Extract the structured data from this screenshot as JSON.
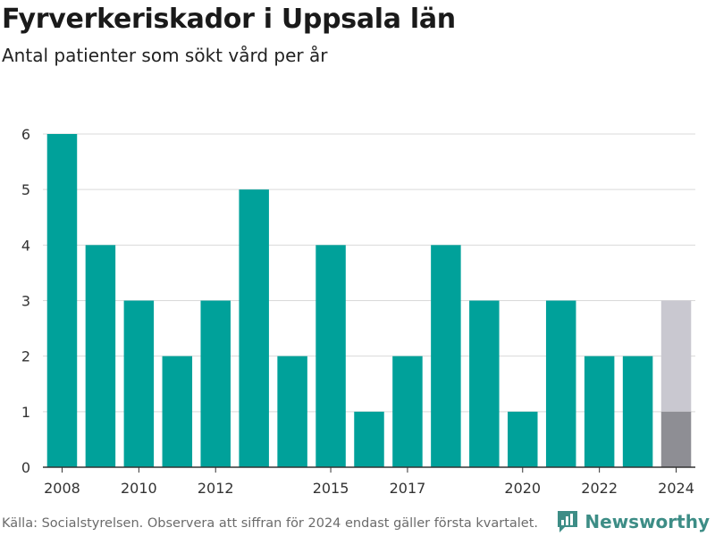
{
  "header": {
    "title": "Fyrverkeriskador i Uppsala län",
    "subtitle": "Antal patienter som sökt vård per år"
  },
  "footer": {
    "source": "Källa: Socialstyrelsen. Observera att siffran för 2024 endast gäller första kvartalet.",
    "brand": "Newsworthy"
  },
  "colors": {
    "bar": "#00a19a",
    "bar_partial": "#8e8e94",
    "bar_expected": "#c9c8d0",
    "grid": "#d9d9d9",
    "brand": "#3d8d86"
  },
  "icons": {
    "brand_logo": "newsworthy-logo-icon"
  },
  "chart_data": {
    "type": "bar",
    "categories": [
      "2008",
      "2009",
      "2010",
      "2011",
      "2012",
      "2013",
      "2014",
      "2015",
      "2016",
      "2017",
      "2018",
      "2019",
      "2020",
      "2021",
      "2022",
      "2023",
      "2024"
    ],
    "values": [
      6,
      4,
      3,
      2,
      3,
      5,
      2,
      4,
      1,
      2,
      4,
      3,
      1,
      3,
      2,
      2,
      1
    ],
    "stacked_extra": {
      "category": "2024",
      "value": 2
    },
    "x_tick_labels": [
      "2008",
      "2010",
      "2012",
      "2015",
      "2017",
      "2020",
      "2022",
      "2024"
    ],
    "y_ticks": [
      0,
      1,
      2,
      3,
      4,
      5,
      6
    ],
    "ylim": [
      0,
      6
    ],
    "grid": true,
    "xlabel": "",
    "ylabel": ""
  }
}
